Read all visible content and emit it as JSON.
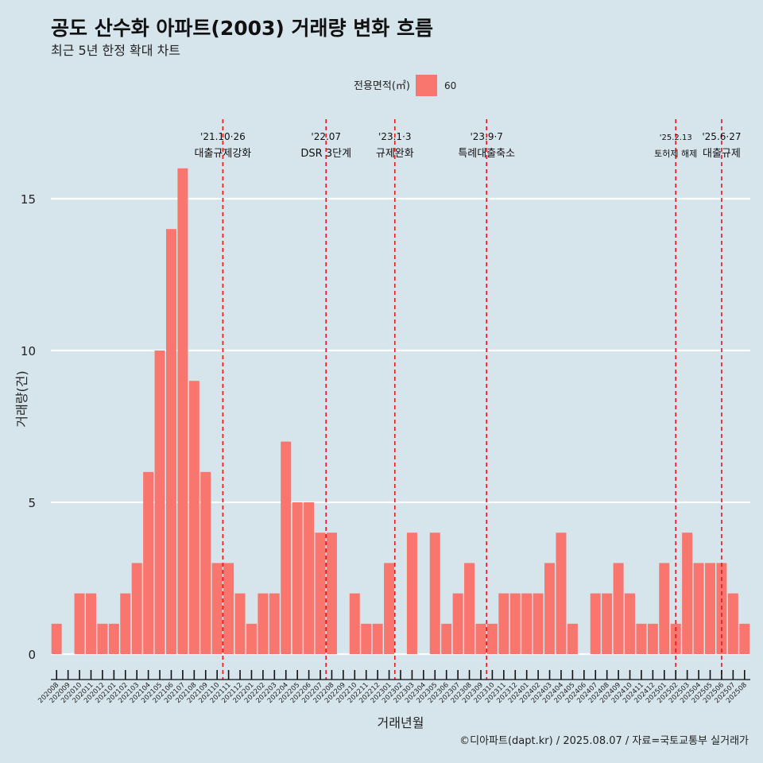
{
  "colors": {
    "background": "#d6e4ec",
    "bar": "#f8766d",
    "gridline": "#ffffff",
    "event_line": "#e41a1c",
    "text": "#111111"
  },
  "chart_data": {
    "type": "bar",
    "title": "공도 산수화 아파트(2003) 거래량 변화 흐름",
    "subtitle": "최근 5년 한정 확대 차트",
    "xlabel": "거래년월",
    "ylabel": "거래량(건)",
    "caption": "©디아파트(dapt.kr) / 2025.08.07 / 자료=국토교통부 실거래가",
    "legend": {
      "title": "전용면적(㎡)",
      "position": "top",
      "items": [
        {
          "label": "60",
          "color": "#f8766d"
        }
      ]
    },
    "ylim": [
      0,
      16
    ],
    "yticks": [
      0,
      5,
      10,
      15
    ],
    "grid": true,
    "categories": [
      "202008",
      "202009",
      "202010",
      "202011",
      "202012",
      "202101",
      "202102",
      "202103",
      "202104",
      "202105",
      "202106",
      "202107",
      "202108",
      "202109",
      "202110",
      "202111",
      "202112",
      "202201",
      "202202",
      "202203",
      "202204",
      "202205",
      "202206",
      "202207",
      "202208",
      "202209",
      "202210",
      "202211",
      "202212",
      "202301",
      "202302",
      "202303",
      "202304",
      "202305",
      "202306",
      "202307",
      "202308",
      "202309",
      "202310",
      "202311",
      "202312",
      "202401",
      "202402",
      "202403",
      "202404",
      "202405",
      "202406",
      "202407",
      "202408",
      "202409",
      "202410",
      "202411",
      "202412",
      "202501",
      "202502",
      "202503",
      "202504",
      "202505",
      "202506",
      "202507",
      "202508"
    ],
    "series": [
      {
        "name": "60",
        "values": [
          1,
          0,
          2,
          2,
          1,
          1,
          2,
          3,
          6,
          10,
          14,
          16,
          9,
          6,
          3,
          3,
          2,
          1,
          2,
          2,
          7,
          5,
          5,
          4,
          4,
          0,
          2,
          1,
          1,
          3,
          0,
          4,
          0,
          4,
          1,
          2,
          3,
          1,
          1,
          2,
          2,
          2,
          2,
          3,
          4,
          1,
          0,
          2,
          2,
          3,
          2,
          1,
          1,
          3,
          1,
          4,
          3,
          3,
          3,
          2,
          1
        ]
      }
    ],
    "events": [
      {
        "x": 14.5,
        "date": "'21.10·26",
        "label": "대출규제강화"
      },
      {
        "x": 23.5,
        "date": "'22.07",
        "label": "DSR 3단계"
      },
      {
        "x": 29.5,
        "date": "'23.1·3",
        "label": "규제완화"
      },
      {
        "x": 37.5,
        "date": "'23.9·7",
        "label": "특례대출축소"
      },
      {
        "x": 54.0,
        "date": "'25.2.13",
        "label": "토허제 해제"
      },
      {
        "x": 58.0,
        "date": "'25.6·27",
        "label": "대출규제"
      }
    ]
  }
}
